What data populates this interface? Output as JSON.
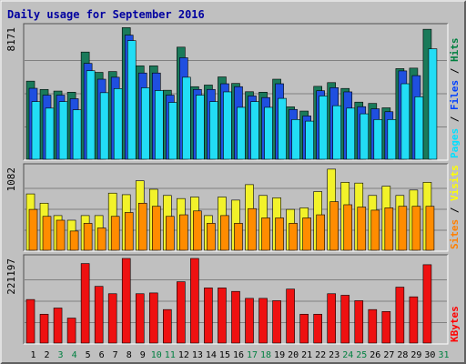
{
  "chart_data": {
    "type": "bar",
    "title": "Daily usage for September 2016",
    "days": [
      "1",
      "2",
      "3",
      "4",
      "5",
      "6",
      "7",
      "8",
      "9",
      "10",
      "11",
      "12",
      "13",
      "14",
      "15",
      "16",
      "17",
      "18",
      "19",
      "20",
      "21",
      "22",
      "23",
      "24",
      "25",
      "26",
      "27",
      "28",
      "29",
      "30",
      "31"
    ],
    "weekend_days": [
      "3",
      "4",
      "10",
      "11",
      "17",
      "18",
      "24",
      "25",
      "31"
    ],
    "panels": [
      {
        "id": "hits-files-pages",
        "max_label": "8171",
        "ylim": [
          0,
          8171
        ],
        "grid": true,
        "legend": [
          {
            "label": "Pages",
            "color": "#00e0ff"
          },
          {
            "label": "Files",
            "color": "#0040ff"
          },
          {
            "label": "Hits",
            "color": "#008040"
          }
        ],
        "series": [
          {
            "name": "Hits",
            "color": "#1a7a5a",
            "values": [
              4860,
              4350,
              4250,
              4180,
              6650,
              5400,
              5450,
              8150,
              5800,
              5800,
              4300,
              6950,
              4520,
              4620,
              5120,
              4720,
              4210,
              4180,
              4980,
              3280,
              3020,
              4540,
              4770,
              4410,
              3570,
              3490,
              3220,
              5630,
              5660,
              8050,
              0
            ]
          },
          {
            "name": "Files",
            "color": "#1f4fe0",
            "values": [
              4420,
              4000,
              4000,
              3780,
              5950,
              4980,
              5100,
              7690,
              5360,
              5360,
              4000,
              6300,
              4350,
              4350,
              4700,
              4520,
              3950,
              3850,
              4700,
              3120,
              2720,
              4270,
              4460,
              4200,
              3290,
              3160,
              2980,
              5490,
              5200,
              0,
              0
            ]
          },
          {
            "name": "Pages",
            "color": "#22ddf5",
            "values": [
              3600,
              3200,
              3600,
              3100,
              5500,
              4150,
              4400,
              7350,
              4450,
              4280,
              3550,
              5100,
              4000,
              3600,
              4200,
              3250,
              3600,
              3250,
              3800,
              2500,
              2400,
              3950,
              3350,
              3200,
              2850,
              2500,
              2500,
              4700,
              3900,
              6850,
              0
            ]
          }
        ]
      },
      {
        "id": "visits-sites",
        "max_label": "1082",
        "ylim": [
          0,
          1082
        ],
        "grid": true,
        "legend": [
          {
            "label": "Sites",
            "color": "#ff8000"
          },
          {
            "label": "Visits",
            "color": "#ffff00"
          }
        ],
        "series": [
          {
            "name": "Visits",
            "color": "#f2f22a",
            "values": [
              740,
              620,
              460,
              400,
              460,
              460,
              750,
              730,
              910,
              800,
              720,
              680,
              700,
              460,
              700,
              660,
              860,
              720,
              690,
              540,
              560,
              770,
              1060,
              890,
              880,
              720,
              840,
              720,
              790,
              890,
              0
            ]
          },
          {
            "name": "Sites",
            "color": "#ff8c00",
            "values": [
              540,
              450,
              400,
              260,
              360,
              300,
              450,
              500,
              620,
              580,
              450,
              470,
              520,
              360,
              460,
              360,
              550,
              430,
              430,
              360,
              430,
              470,
              640,
              600,
              570,
              530,
              560,
              580,
              580,
              580,
              0
            ]
          }
        ]
      },
      {
        "id": "kbytes",
        "max_label": "221197",
        "ylim": [
          0,
          221197
        ],
        "grid": true,
        "legend": [
          {
            "label": "KBytes",
            "color": "#ff0000"
          }
        ],
        "series": [
          {
            "name": "KBytes",
            "color": "#ee1111",
            "values": [
              115000,
              77000,
              93000,
              67000,
              208000,
              149000,
              130000,
              221197,
              130000,
              132000,
              89000,
              161000,
              221197,
              145000,
              145000,
              136000,
              118000,
              118000,
              112000,
              142000,
              77000,
              77000,
              130000,
              126000,
              112000,
              89000,
              84000,
              147000,
              122000,
              205000,
              0
            ]
          }
        ]
      }
    ]
  }
}
